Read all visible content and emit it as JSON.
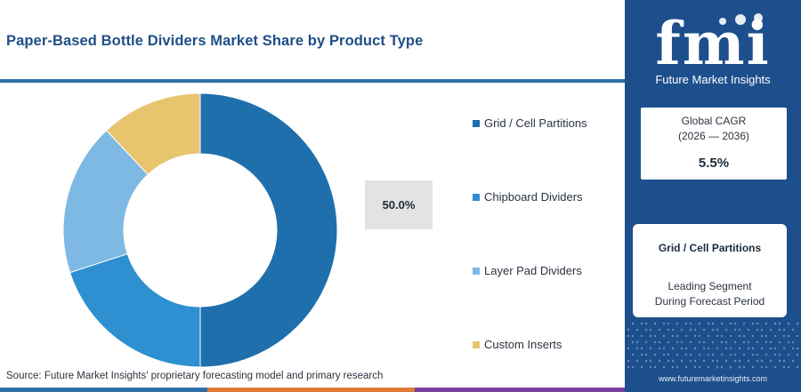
{
  "title": "Paper-Based Bottle Dividers Market Share by Product Type",
  "source": "Source: Future Market Insights' proprietary forecasting model and primary research",
  "center_label": "50.0%",
  "colors": {
    "title": "#1f4f86",
    "panel": "#1d4f8c",
    "rule": "#2f6fa8",
    "bottom_bar": [
      "#2f6fa8",
      "#e07b39",
      "#7b3fa0"
    ]
  },
  "logo": {
    "letters": "fmi",
    "name": "Future Market Insights"
  },
  "cagr": {
    "label": "Global CAGR",
    "period": "(2026 — 2036)",
    "value": "5.5%"
  },
  "leading": {
    "name": "Grid / Cell Partitions",
    "desc1": "Leading Segment",
    "desc2": "During Forecast Period"
  },
  "website": "www.futuremarketinsights.com",
  "chart_data": {
    "type": "pie",
    "title": "Paper-Based Bottle Dividers Market Share by Product Type",
    "categories": [
      "Grid / Cell Partitions",
      "Chipboard Dividers",
      "Layer Pad Dividers",
      "Custom Inserts"
    ],
    "values": [
      50.0,
      20.0,
      18.0,
      12.0
    ],
    "colors": [
      "#1f6fad",
      "#2e8fd1",
      "#7db9e2",
      "#e7c46e"
    ],
    "donut": true,
    "legend_position": "right"
  }
}
